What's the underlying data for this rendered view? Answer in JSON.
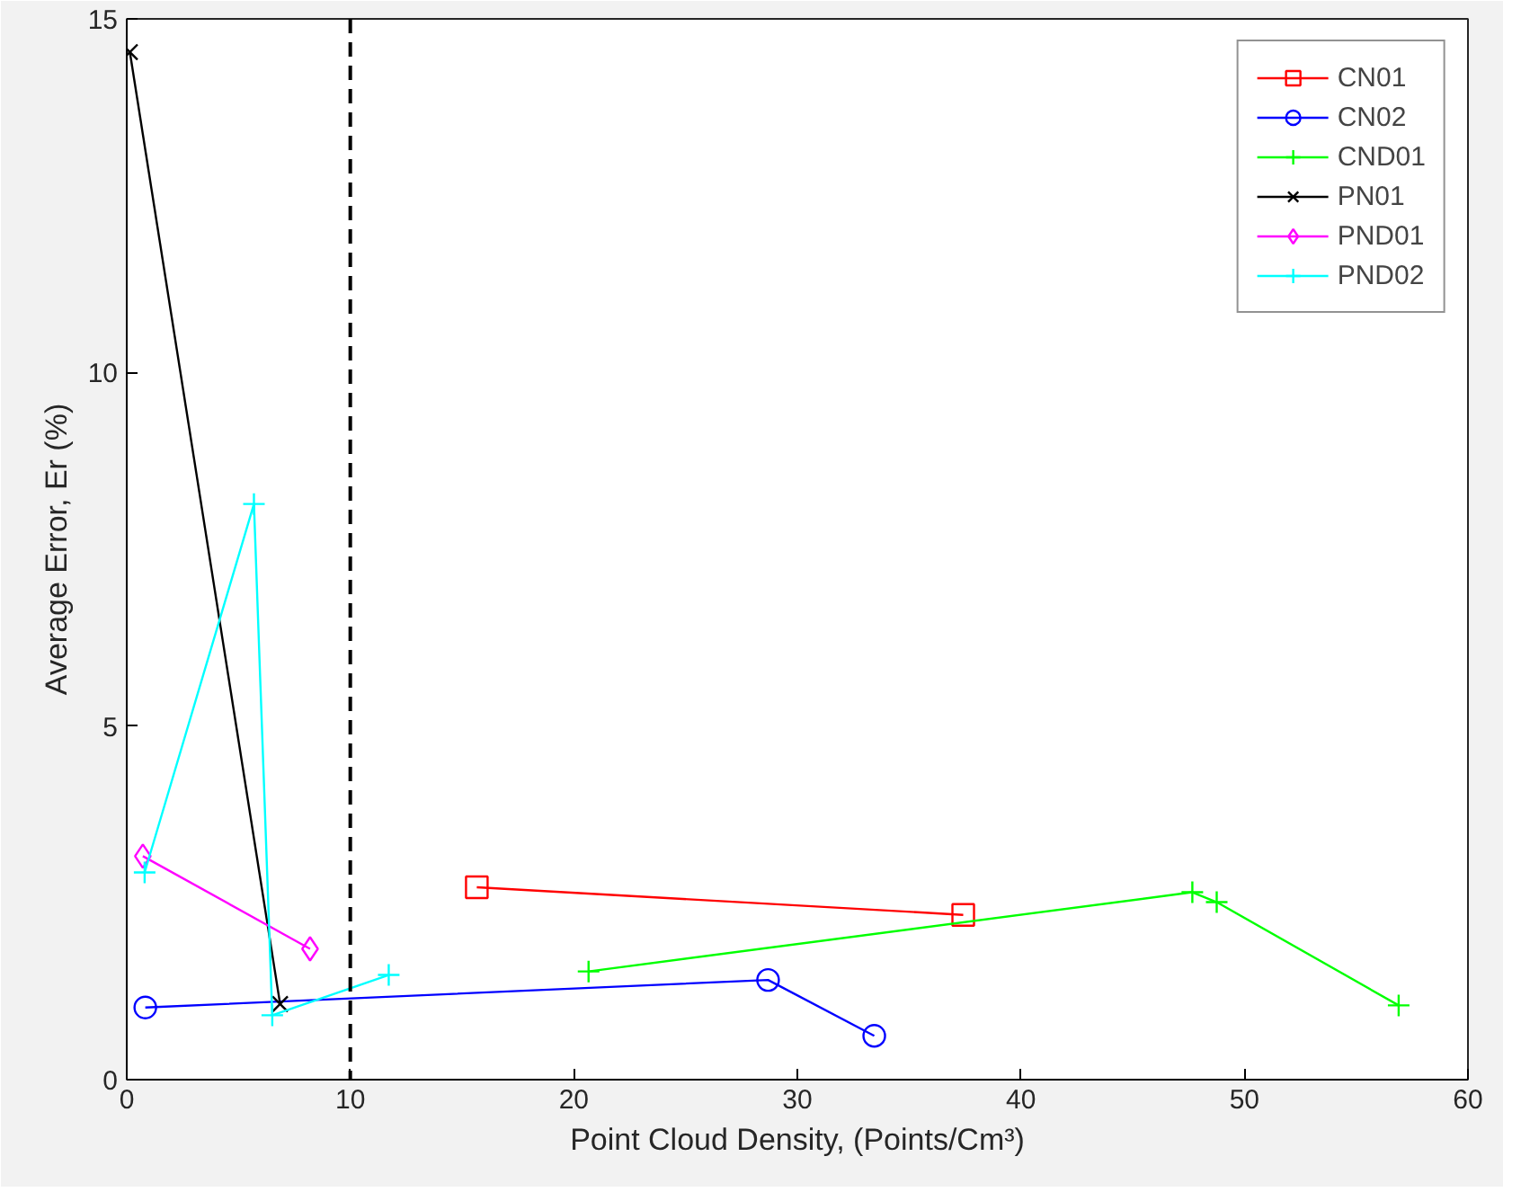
{
  "chart_data": {
    "type": "line",
    "xlabel": "Point Cloud Density, (Points/Cm³)",
    "ylabel": "Average Error, Er (%)",
    "xlim": [
      0,
      60
    ],
    "ylim": [
      0,
      15
    ],
    "xticks": [
      0,
      10,
      20,
      30,
      40,
      50,
      60
    ],
    "yticks": [
      0,
      5,
      10,
      15
    ],
    "grid": false,
    "legend": "top right",
    "line_style": "solid",
    "series": [
      {
        "name": "CN01",
        "color": "#ff0000",
        "marker": "square",
        "x": [
          15.66,
          37.42
        ],
        "values": [
          2.72,
          2.33
        ]
      },
      {
        "name": "CN02",
        "color": "#0000ff",
        "marker": "circle",
        "x": [
          0.83,
          28.69,
          33.44
        ],
        "values": [
          1.02,
          1.41,
          0.62
        ]
      },
      {
        "name": "CND01",
        "color": "#00ff00",
        "marker": "cross",
        "x": [
          20.66,
          47.67,
          48.76,
          56.9
        ],
        "values": [
          1.53,
          2.65,
          2.51,
          1.05
        ]
      },
      {
        "name": "PN01",
        "color": "#000000",
        "marker": "x",
        "x": [
          0.14,
          6.86
        ],
        "values": [
          14.53,
          1.07
        ]
      },
      {
        "name": "PND01",
        "color": "#ff00ff",
        "marker": "diamond",
        "x": [
          0.72,
          8.2
        ],
        "values": [
          3.16,
          1.85
        ]
      },
      {
        "name": "PND02",
        "color": "#00ffff",
        "marker": "cross",
        "x": [
          0.8,
          5.69,
          6.51,
          11.72
        ],
        "values": [
          2.93,
          8.14,
          0.91,
          1.48
        ]
      }
    ],
    "ref_lines": [
      {
        "axis": "x",
        "value": 10,
        "color": "#000000",
        "line_style": "dashed"
      }
    ]
  }
}
